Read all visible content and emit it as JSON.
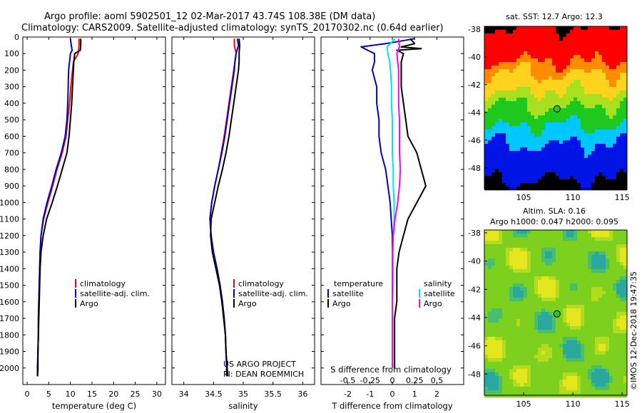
{
  "header": {
    "line1": "Argo profile: aoml 5902501_12 02-Mar-2017 43.74S 108.38E (DM data)",
    "line2": "Climatology: CARS2009. Satellite-adjusted climatology: synTS_20170302.nc (0.64d earlier)"
  },
  "footer": {
    "stamp": "©IMOS 12-Dec-2018 19:47:35",
    "project_line1": "US ARGO PROJECT",
    "project_line2": "PI: DEAN ROEMMICH"
  },
  "colors": {
    "climatology": "#ff0000",
    "satellite": "#0000cc",
    "argo": "#000000",
    "sal_satellite": "#00e5e5",
    "sal_argo": "#ff00ff"
  },
  "chart_data": [
    {
      "id": "temperature",
      "type": "line",
      "xlabel": "temperature (deg C)",
      "ylim": [
        2100,
        0
      ],
      "xlim": [
        -1,
        32
      ],
      "x_ticks": [
        "0",
        "5",
        "10",
        "15",
        "20",
        "25",
        "30"
      ],
      "x_tick_values": [
        0,
        5,
        10,
        15,
        20,
        25,
        30
      ],
      "y_ticks": [
        "0",
        "100",
        "200",
        "300",
        "400",
        "500",
        "600",
        "700",
        "800",
        "900",
        "1000",
        "1100",
        "1200",
        "1300",
        "1400",
        "1500",
        "1600",
        "1700",
        "1800",
        "1900",
        "2000"
      ],
      "y_tick_values": [
        0,
        100,
        200,
        300,
        400,
        500,
        600,
        700,
        800,
        900,
        1000,
        1100,
        1200,
        1300,
        1400,
        1500,
        1600,
        1700,
        1800,
        1900,
        2000
      ],
      "legend": [
        "climatology",
        "satellite-adj. clim.",
        "Argo"
      ],
      "series": [
        {
          "name": "climatology",
          "color": "#ff0000",
          "depth": [
            10,
            50,
            80,
            100,
            150,
            200,
            300,
            400,
            500,
            600,
            700,
            800,
            900,
            1000,
            1100,
            1200,
            1300,
            1400,
            1500,
            1600,
            1700,
            1800,
            1900,
            2000,
            2050
          ],
          "values": [
            12.0,
            12.0,
            11.9,
            11.8,
            10.7,
            10.5,
            10.1,
            9.8,
            9.4,
            9.0,
            8.1,
            6.9,
            5.9,
            4.8,
            3.8,
            3.2,
            3.0,
            2.9,
            2.8,
            2.7,
            2.6,
            2.6,
            2.5,
            2.4,
            2.4
          ]
        },
        {
          "name": "satellite-adj. clim.",
          "color": "#0000cc",
          "depth": [
            10,
            50,
            80,
            100,
            150,
            200,
            300,
            400,
            500,
            600,
            700,
            800,
            900,
            1000,
            1100,
            1200,
            1300,
            1400,
            1500,
            1600,
            1700,
            1800,
            1900,
            2000,
            2050
          ],
          "values": [
            10.0,
            10.2,
            10.4,
            10.0,
            9.8,
            9.6,
            9.5,
            9.4,
            9.2,
            8.8,
            7.9,
            6.7,
            5.7,
            4.6,
            3.7,
            3.2,
            3.0,
            2.9,
            2.8,
            2.7,
            2.6,
            2.6,
            2.5,
            2.4,
            2.4
          ]
        },
        {
          "name": "Argo",
          "color": "#000000",
          "depth": [
            10,
            50,
            80,
            100,
            150,
            200,
            300,
            400,
            500,
            600,
            700,
            800,
            900,
            1000,
            1100,
            1200,
            1300,
            1400,
            1500,
            1600,
            1700,
            1800,
            1900,
            2000,
            2050
          ],
          "values": [
            12.4,
            12.4,
            12.3,
            11.0,
            10.8,
            10.7,
            10.5,
            10.3,
            10.0,
            9.7,
            9.2,
            8.1,
            7.0,
            5.8,
            4.5,
            3.7,
            3.2,
            3.0,
            2.9,
            2.8,
            2.7,
            2.6,
            2.5,
            2.5,
            2.4
          ]
        }
      ]
    },
    {
      "id": "salinity",
      "type": "line",
      "xlabel": "salinity",
      "ylim": [
        2100,
        0
      ],
      "xlim": [
        33.8,
        36.2
      ],
      "x_ticks": [
        "34",
        "34.5",
        "35",
        "35.5",
        "36"
      ],
      "x_tick_values": [
        34,
        34.5,
        35,
        35.5,
        36
      ],
      "legend": [
        "climatology",
        "satellite-adj. clim.",
        "Argo"
      ],
      "series": [
        {
          "name": "climatology",
          "color": "#ff0000",
          "depth": [
            10,
            50,
            100,
            150,
            200,
            300,
            400,
            500,
            600,
            700,
            800,
            900,
            1000,
            1100,
            1200,
            1300,
            1400,
            1500,
            1600,
            1700,
            1800,
            1900,
            2000,
            2050
          ],
          "values": [
            34.85,
            34.85,
            34.88,
            34.86,
            34.84,
            34.8,
            34.76,
            34.72,
            34.68,
            34.63,
            34.58,
            34.52,
            34.47,
            34.44,
            34.46,
            34.5,
            34.56,
            34.61,
            34.65,
            34.68,
            34.7,
            34.71,
            34.72,
            34.72
          ]
        },
        {
          "name": "satellite-adj. clim.",
          "color": "#0000cc",
          "depth": [
            10,
            50,
            100,
            150,
            200,
            300,
            400,
            500,
            600,
            700,
            800,
            900,
            1000,
            1100,
            1200,
            1300,
            1400,
            1500,
            1600,
            1700,
            1800,
            1900,
            2000,
            2050
          ],
          "values": [
            34.9,
            34.92,
            34.88,
            34.86,
            34.85,
            34.81,
            34.77,
            34.73,
            34.69,
            34.64,
            34.58,
            34.52,
            34.47,
            34.44,
            34.46,
            34.5,
            34.56,
            34.61,
            34.65,
            34.68,
            34.7,
            34.71,
            34.72,
            34.72
          ]
        },
        {
          "name": "Argo",
          "color": "#000000",
          "depth": [
            10,
            50,
            100,
            150,
            200,
            300,
            400,
            500,
            600,
            700,
            800,
            900,
            1000,
            1100,
            1200,
            1300,
            1400,
            1500,
            1600,
            1700,
            1800,
            1900,
            2000,
            2050
          ],
          "values": [
            34.93,
            34.94,
            34.93,
            34.93,
            34.92,
            34.88,
            34.84,
            34.8,
            34.76,
            34.71,
            34.65,
            34.58,
            34.52,
            34.46,
            34.45,
            34.48,
            34.54,
            34.6,
            34.64,
            34.67,
            34.7,
            34.71,
            34.73,
            34.74
          ]
        }
      ]
    },
    {
      "id": "difference",
      "type": "line",
      "xlabel": "T difference from climatology",
      "s_axis_label": "S difference from climatology",
      "ylim": [
        2100,
        0
      ],
      "xlim": [
        -3.2,
        3.2
      ],
      "x_ticks": [
        "-2",
        "-1",
        "0",
        "1",
        "2"
      ],
      "x_tick_values": [
        -2,
        -1,
        0,
        1,
        2
      ],
      "s_ticks": [
        "-0.5",
        "-0.25",
        "0",
        "0.25",
        "0.5"
      ],
      "s_tick_values": [
        -0.5,
        -0.25,
        0,
        0.25,
        0.5
      ],
      "legend_left_title": "temperature",
      "legend_right_title": "salinity",
      "legend_left": [
        "satellite",
        "Argo"
      ],
      "legend_right": [
        "satellite",
        "Argo"
      ],
      "series": [
        {
          "name": "satellite",
          "group": "temperature",
          "color": "#0000cc",
          "depth": [
            10,
            40,
            60,
            80,
            100,
            150,
            200,
            300,
            400,
            500,
            600,
            700,
            800,
            900,
            1000,
            1100,
            1200,
            1300,
            1400,
            1500,
            1600,
            1700,
            1800,
            1900,
            2000
          ],
          "values": [
            1.0,
            -0.3,
            -1.4,
            -1.1,
            -0.8,
            -0.8,
            -0.9,
            -0.7,
            -0.7,
            -0.6,
            -0.6,
            -0.5,
            -0.3,
            -0.2,
            -0.1,
            -0.05,
            0.0,
            0.0,
            0.0,
            0.0,
            0.0,
            0.0,
            0.0,
            0.0,
            0.0
          ]
        },
        {
          "name": "Argo",
          "group": "temperature",
          "color": "#000000",
          "depth": [
            10,
            40,
            60,
            70,
            80,
            100,
            150,
            200,
            300,
            400,
            500,
            600,
            700,
            800,
            900,
            1000,
            1100,
            1200,
            1300,
            1400,
            1500,
            1600,
            1700,
            1800,
            1900,
            2000
          ],
          "values": [
            0.8,
            1.0,
            0.4,
            1.3,
            0.2,
            0.5,
            0.4,
            0.4,
            0.4,
            0.5,
            0.6,
            0.7,
            1.1,
            1.3,
            1.5,
            1.1,
            0.7,
            0.5,
            0.3,
            0.2,
            0.2,
            0.2,
            0.1,
            0.1,
            0.1,
            0.1
          ]
        },
        {
          "name": "satellite",
          "group": "salinity",
          "color": "#00e5e5",
          "depth": [
            10,
            60,
            100,
            150,
            200,
            300,
            400,
            500,
            600,
            700,
            800,
            900,
            1000,
            1100,
            1200,
            1300,
            1400,
            1500,
            1600,
            1700,
            1800,
            1900,
            2000
          ],
          "values": [
            0.03,
            -0.06,
            -0.05,
            -0.03,
            -0.02,
            -0.01,
            -0.01,
            0.0,
            0.0,
            0.0,
            0.01,
            0.01,
            0.02,
            0.02,
            0.01,
            0.01,
            0.01,
            0.01,
            0.0,
            0.0,
            0.0,
            0.0,
            0.0
          ]
        },
        {
          "name": "Argo",
          "group": "salinity",
          "color": "#ff00ff",
          "depth": [
            10,
            60,
            100,
            150,
            200,
            300,
            400,
            500,
            600,
            700,
            800,
            900,
            1000,
            1100,
            1200,
            1300,
            1400,
            1500,
            1600,
            1700,
            1800,
            1900,
            2000
          ],
          "values": [
            0.07,
            0.08,
            0.05,
            0.06,
            0.07,
            0.07,
            0.07,
            0.08,
            0.08,
            0.08,
            0.09,
            0.08,
            0.06,
            0.03,
            0.01,
            0.0,
            0.0,
            0.0,
            0.0,
            0.0,
            0.0,
            0.0,
            0.0
          ]
        }
      ]
    },
    {
      "id": "sst-map",
      "type": "heatmap",
      "title": "sat. SST: 12.7 Argo: 12.3",
      "xlim": [
        101,
        115.5
      ],
      "ylim": [
        -49.5,
        -37.8
      ],
      "x_ticks": [
        "105",
        "110",
        "115"
      ],
      "x_tick_values": [
        105,
        110,
        115
      ],
      "y_ticks": [
        "-38",
        "-40",
        "-42",
        "-44",
        "-46",
        "-48"
      ],
      "y_tick_values": [
        -38,
        -40,
        -42,
        -44,
        -46,
        -48
      ],
      "marker": {
        "lon": 108.38,
        "lat": -43.74
      },
      "bands": [
        {
          "lat_top": -37.8,
          "lat_bottom": -40.3,
          "color": "#ff0000"
        },
        {
          "lat_top": -40.3,
          "lat_bottom": -41.2,
          "color": "#ff8c00"
        },
        {
          "lat_top": -41.2,
          "lat_bottom": -42.5,
          "color": "#ffd21e"
        },
        {
          "lat_top": -42.5,
          "lat_bottom": -43.6,
          "color": "#a9e01e"
        },
        {
          "lat_top": -43.6,
          "lat_bottom": -45.0,
          "color": "#1ec81e"
        },
        {
          "lat_top": -45.0,
          "lat_bottom": -46.3,
          "color": "#00c8ff"
        },
        {
          "lat_top": -46.3,
          "lat_bottom": -48.9,
          "color": "#0014e6"
        },
        {
          "lat_top": -48.9,
          "lat_bottom": -49.5,
          "color": "#000000"
        }
      ]
    },
    {
      "id": "sla-map",
      "type": "heatmap",
      "title": "Altim. SLA: 0.16",
      "subtitle": "Argo h1000: 0.047 h2000: 0.095",
      "xlim": [
        101,
        115.5
      ],
      "ylim": [
        -49.5,
        -37.8
      ],
      "x_ticks": [
        "105",
        "110",
        "115"
      ],
      "x_tick_values": [
        105,
        110,
        115
      ],
      "y_ticks": [
        "-38",
        "-40",
        "-42",
        "-44",
        "-46",
        "-48"
      ],
      "y_tick_values": [
        -38,
        -40,
        -42,
        -44,
        -46,
        -48
      ],
      "marker": {
        "lon": 108.38,
        "lat": -43.74
      },
      "background": "#7ed01e"
    }
  ]
}
